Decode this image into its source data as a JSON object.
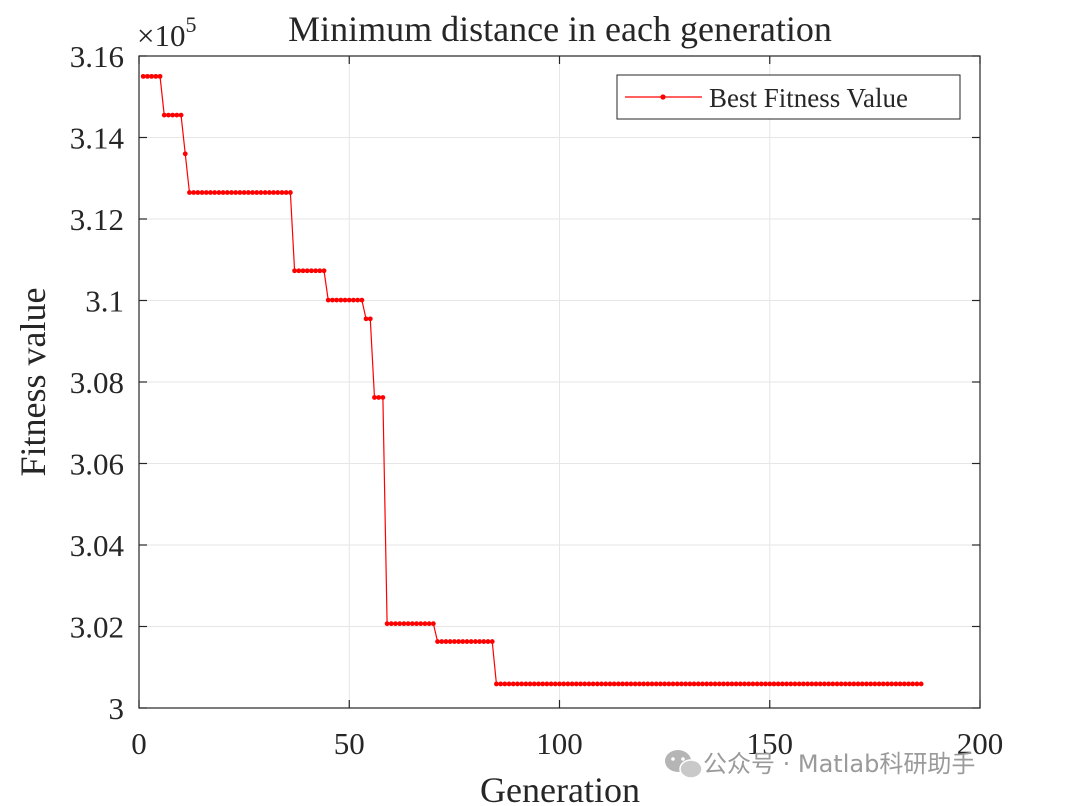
{
  "chart_data": {
    "type": "line",
    "title": "Minimum distance in each generation",
    "xlabel": "Generation",
    "ylabel": "Fitness value",
    "y_exponent_label": "×10",
    "y_exponent_power": "5",
    "xlim": [
      0,
      200
    ],
    "ylim": [
      3.0,
      3.16
    ],
    "x_ticks": [
      0,
      50,
      100,
      150,
      200
    ],
    "x_tick_labels": [
      "0",
      "50",
      "100",
      "150",
      "200"
    ],
    "y_ticks": [
      3.0,
      3.02,
      3.04,
      3.06,
      3.08,
      3.1,
      3.12,
      3.14,
      3.16
    ],
    "y_tick_labels": [
      "3",
      "3.02",
      "3.04",
      "3.06",
      "3.08",
      "3.1",
      "3.12",
      "3.14",
      "3.16"
    ],
    "grid": true,
    "legend_position": "top-right",
    "color": "#ff0000",
    "series": [
      {
        "name": "Best Fitness Value",
        "segments": [
          {
            "from": 1,
            "to": 5,
            "value": 3.155
          },
          {
            "from": 6,
            "to": 10,
            "value": 3.1455
          },
          {
            "from": 11,
            "to": 11,
            "value": 3.136
          },
          {
            "from": 12,
            "to": 36,
            "value": 3.1265
          },
          {
            "from": 37,
            "to": 44,
            "value": 3.1073
          },
          {
            "from": 45,
            "to": 53,
            "value": 3.1001
          },
          {
            "from": 54,
            "to": 55,
            "value": 3.0955
          },
          {
            "from": 56,
            "to": 58,
            "value": 3.0762
          },
          {
            "from": 59,
            "to": 70,
            "value": 3.0207
          },
          {
            "from": 71,
            "to": 84,
            "value": 3.0163
          },
          {
            "from": 85,
            "to": 186,
            "value": 3.0059
          }
        ]
      }
    ]
  },
  "watermark": {
    "text": "公众号 · Matlab科研助手",
    "icon": "wechat-icon"
  }
}
